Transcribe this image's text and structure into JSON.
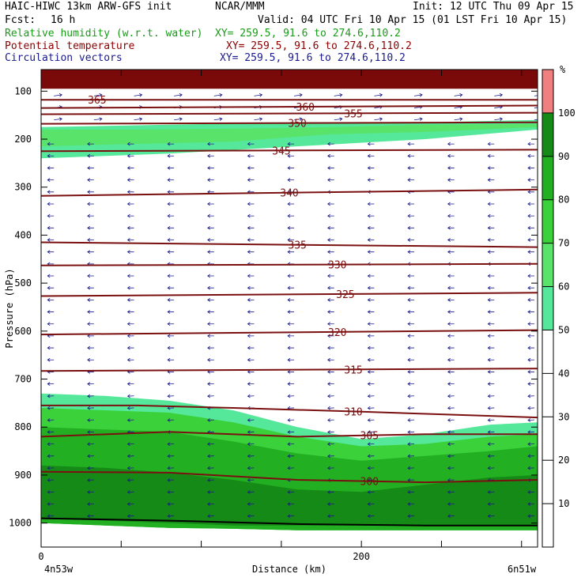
{
  "header": {
    "model": "HAIC-HIWC 13km ARW-GFS init",
    "org": "NCAR/MMM",
    "init": "Init: 12 UTC Thu 09 Apr 15",
    "fcst_label": "Fcst:",
    "fcst_value": "16 h",
    "valid": "Valid: 04 UTC Fri 10 Apr 15 (01 LST Fri 10 Apr 15)",
    "fields": [
      {
        "name": "Relative humidity (w.r.t. water)",
        "xy": "XY= 259.5, 91.6 to 274.6,110.2",
        "color": "#1a9a1a"
      },
      {
        "name": "Potential temperature",
        "xy": "XY= 259.5, 91.6 to 274.6,110.2",
        "color": "#8b0000"
      },
      {
        "name": "Circulation vectors",
        "xy": "XY= 259.5, 91.6 to 274.6,110.2",
        "color": "#1a1a8c"
      }
    ]
  },
  "chart_data": {
    "type": "heatmap",
    "title": "",
    "xlabel": "Distance (km)",
    "ylabel": "Pressure (hPa)",
    "xlim": [
      0,
      310
    ],
    "ylim": [
      1050,
      55
    ],
    "x_ticks": [
      0,
      200
    ],
    "y_ticks": [
      100,
      200,
      300,
      400,
      500,
      600,
      700,
      800,
      900,
      1000
    ],
    "x_end_labels": {
      "left": "4n53w",
      "right": "6n51w"
    },
    "colorbar": {
      "unit": "%",
      "levels": [
        10,
        20,
        30,
        40,
        50,
        60,
        70,
        80,
        90,
        100
      ],
      "bands": [
        {
          "from": 0,
          "to": 50,
          "color": "#ffffff"
        },
        {
          "from": 50,
          "to": 60,
          "color": "#55e89a"
        },
        {
          "from": 60,
          "to": 70,
          "color": "#59e36b"
        },
        {
          "from": 70,
          "to": 80,
          "color": "#3bd13b"
        },
        {
          "from": 80,
          "to": 90,
          "color": "#22b022"
        },
        {
          "from": 90,
          "to": 100,
          "color": "#168a16"
        },
        {
          "from": 100,
          "to": 110,
          "color": "#f08080"
        }
      ]
    },
    "rh_regions": [
      {
        "level": "dark-top",
        "color": "#7a0a0a",
        "x": [
          0,
          310
        ],
        "p_top": [
          55,
          55
        ],
        "p_bot": [
          95,
          95
        ]
      },
      {
        "level": "50-60",
        "color": "#55e89a",
        "x": [
          0,
          80,
          160,
          240,
          310
        ],
        "p_top": [
          175,
          170,
          165,
          165,
          160
        ],
        "p_bot": [
          240,
          230,
          215,
          200,
          180
        ]
      },
      {
        "level": "60-70",
        "color": "#59e36b",
        "x": [
          0,
          60,
          120,
          180,
          240,
          310
        ],
        "p_top": [
          180,
          180,
          178,
          175,
          170,
          168
        ],
        "p_bot": [
          215,
          210,
          205,
          190,
          185,
          175
        ]
      },
      {
        "level": "50-60 low",
        "color": "#55e89a",
        "x": [
          0,
          40,
          80,
          120,
          160,
          200,
          240,
          280,
          310
        ],
        "p_top": [
          730,
          735,
          745,
          765,
          800,
          825,
          815,
          795,
          790
        ],
        "p_bot": [
          1000,
          1005,
          1010,
          1012,
          1015,
          1015,
          1015,
          1015,
          1015
        ]
      },
      {
        "level": "70-80",
        "color": "#3bd13b",
        "x": [
          0,
          40,
          80,
          120,
          160,
          200,
          240,
          280,
          310
        ],
        "p_top": [
          760,
          765,
          770,
          790,
          820,
          840,
          835,
          820,
          815
        ],
        "p_bot": [
          1000,
          1005,
          1010,
          1012,
          1015,
          1015,
          1015,
          1015,
          1015
        ]
      },
      {
        "level": "80-90",
        "color": "#22b022",
        "x": [
          0,
          40,
          80,
          120,
          160,
          200,
          240,
          280,
          310
        ],
        "p_top": [
          800,
          805,
          810,
          830,
          855,
          870,
          860,
          850,
          840
        ],
        "p_bot": [
          1000,
          1005,
          1010,
          1012,
          1015,
          1015,
          1015,
          1015,
          1015
        ]
      },
      {
        "level": "90-100",
        "color": "#168a16",
        "x": [
          0,
          40,
          80,
          120,
          160,
          200,
          240,
          280,
          310
        ],
        "p_top": [
          880,
          885,
          895,
          910,
          930,
          935,
          920,
          905,
          900
        ],
        "p_bot": [
          990,
          995,
          1000,
          1005,
          1005,
          1005,
          1005,
          1005,
          1005
        ]
      }
    ],
    "theta_contours": [
      {
        "label": "365",
        "x": [
          0,
          310
        ],
        "p": [
          118,
          118
        ],
        "label_x": 35
      },
      {
        "label": "360",
        "x": [
          0,
          310
        ],
        "p": [
          135,
          130
        ],
        "label_x": 165
      },
      {
        "label": "355",
        "x": [
          0,
          310
        ],
        "p": [
          148,
          145
        ],
        "label_x": 195
      },
      {
        "label": "350",
        "x": [
          0,
          310
        ],
        "p": [
          168,
          165
        ],
        "label_x": 160
      },
      {
        "label": "345",
        "x": [
          0,
          310
        ],
        "p": [
          225,
          222
        ],
        "label_x": 150
      },
      {
        "label": "340",
        "x": [
          0,
          310
        ],
        "p": [
          318,
          305
        ],
        "label_x": 155
      },
      {
        "label": "335",
        "x": [
          0,
          310
        ],
        "p": [
          415,
          425
        ],
        "label_x": 160
      },
      {
        "label": "330",
        "x": [
          0,
          310
        ],
        "p": [
          463,
          460
        ],
        "label_x": 185
      },
      {
        "label": "325",
        "x": [
          0,
          310
        ],
        "p": [
          527,
          520
        ],
        "label_x": 190
      },
      {
        "label": "320",
        "x": [
          0,
          310
        ],
        "p": [
          607,
          598
        ],
        "label_x": 185
      },
      {
        "label": "315",
        "x": [
          0,
          310
        ],
        "p": [
          683,
          678
        ],
        "label_x": 195
      },
      {
        "label": "310",
        "x": [
          0,
          60,
          120,
          200,
          310
        ],
        "p": [
          755,
          755,
          760,
          768,
          780
        ],
        "label_x": 195
      },
      {
        "label": "305",
        "x": [
          0,
          80,
          160,
          240,
          310
        ],
        "p": [
          820,
          810,
          820,
          815,
          815
        ],
        "label_x": 205
      },
      {
        "label": "300",
        "x": [
          0,
          80,
          160,
          240,
          310
        ],
        "p": [
          893,
          895,
          910,
          915,
          910
        ],
        "label_x": 205
      },
      {
        "label": "",
        "x": [
          0,
          80,
          160,
          240,
          310
        ],
        "p": [
          990,
          995,
          1002,
          1005,
          1005
        ],
        "label_x": 0
      }
    ],
    "wind_vectors": {
      "upper": {
        "p_range": [
          90,
          175
        ],
        "dx": 1,
        "dy": 0.3
      },
      "mid": {
        "p_range": [
          195,
          720
        ],
        "dx": -1,
        "dy": 0
      },
      "low": {
        "p_range": [
          730,
          1000
        ],
        "dx": -1,
        "dy": -0.1
      }
    },
    "grid": false,
    "legend": "right"
  }
}
